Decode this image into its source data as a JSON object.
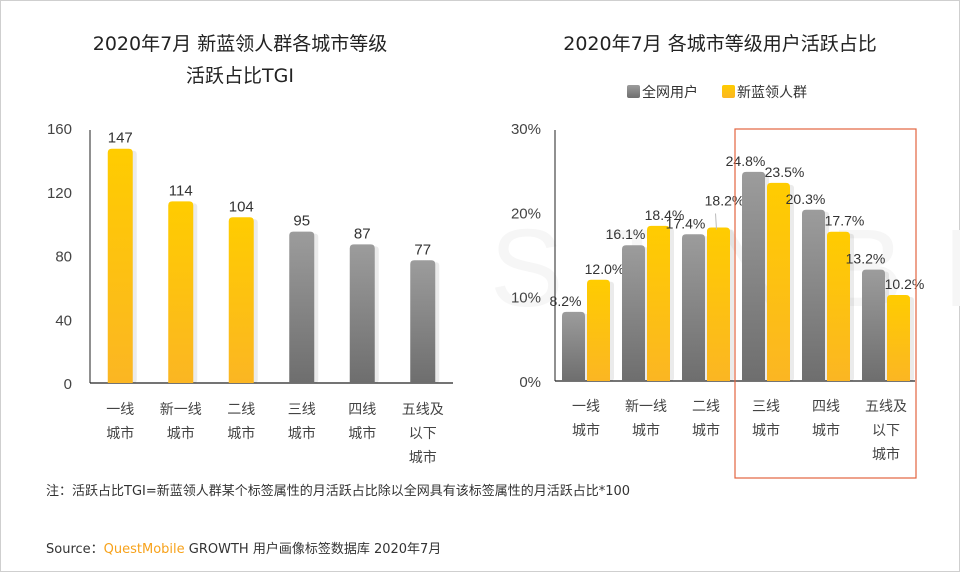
{
  "chart_data": [
    {
      "type": "bar",
      "title": "2020年7月 新蓝领人群各城市等级活跃占比TGI",
      "title_lines": [
        "2020年7月 新蓝领人群各城市等级",
        "活跃占比TGI"
      ],
      "categories": [
        [
          "一线",
          "城市"
        ],
        [
          "新一线",
          "城市"
        ],
        [
          "二线",
          "城市"
        ],
        [
          "三线",
          "城市"
        ],
        [
          "四线",
          "城市"
        ],
        [
          "五线及",
          "以下",
          "城市"
        ]
      ],
      "values": [
        147,
        114,
        104,
        95,
        87,
        77
      ],
      "value_labels": [
        "147",
        "114",
        "104",
        "95",
        "87",
        "77"
      ],
      "bar_colors": [
        "yellow",
        "yellow",
        "yellow",
        "gray",
        "gray",
        "gray"
      ],
      "ylim": [
        0,
        160
      ],
      "yticks": [
        0,
        40,
        80,
        120,
        160
      ],
      "ytick_labels": [
        "0",
        "40",
        "80",
        "120",
        "160"
      ],
      "xlabel": "",
      "ylabel": "",
      "grid": false
    },
    {
      "type": "bar",
      "title": "2020年7月 各城市等级用户活跃占比",
      "categories": [
        [
          "一线",
          "城市"
        ],
        [
          "新一线",
          "城市"
        ],
        [
          "二线",
          "城市"
        ],
        [
          "三线",
          "城市"
        ],
        [
          "四线",
          "城市"
        ],
        [
          "五线及",
          "以下",
          "城市"
        ]
      ],
      "series": [
        {
          "name": "全网用户",
          "color": "gray",
          "values": [
            8.2,
            16.1,
            17.4,
            24.8,
            20.3,
            13.2
          ],
          "labels": [
            "8.2%",
            "16.1%",
            "17.4%",
            "24.8%",
            "20.3%",
            "13.2%"
          ]
        },
        {
          "name": "新蓝领人群",
          "color": "yellow",
          "values": [
            12.0,
            18.4,
            18.2,
            23.5,
            17.7,
            10.2
          ],
          "labels": [
            "12.0%",
            "18.4%",
            "18.2%",
            "23.5%",
            "17.7%",
            "10.2%"
          ]
        }
      ],
      "ylim": [
        0,
        30
      ],
      "yticks": [
        0,
        10,
        20,
        30
      ],
      "ytick_labels": [
        "0%",
        "10%",
        "20%",
        "30%"
      ],
      "legend": "top-center",
      "highlight_categories": [
        "三线城市",
        "四线城市",
        "五线及以下城市"
      ],
      "highlight_color": "#e2643f",
      "xlabel": "",
      "ylabel": "",
      "grid": false
    }
  ],
  "colors": {
    "yellow_top": "#ffcc00",
    "yellow_bottom": "#fbb623",
    "gray_top": "#9c9c9c",
    "gray_bottom": "#6e6e6e",
    "brand": "#f7a21b"
  },
  "watermark": "STNBLE",
  "note": "注：活跃占比TGI=新蓝领人群某个标签属性的月活跃占比除以全网具有该标签属性的月活跃占比*100",
  "source": {
    "prefix": "Source：",
    "brand": "QuestMobile",
    "suffix": " GROWTH 用户画像标签数据库 2020年7月"
  }
}
